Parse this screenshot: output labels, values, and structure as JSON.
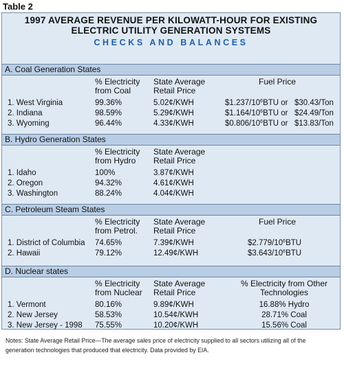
{
  "table_label": "Table 2",
  "title_line1": "1997 AVERAGE REVENUE PER KILOWATT-HOUR FOR EXISTING",
  "title_line2": "ELECTRIC UTILITY GENERATION SYSTEMS",
  "subtitle": "CHECKS AND BALANCES",
  "sections": {
    "coal": {
      "heading": "A. Coal Generation States",
      "col1_l1": "% Electricity",
      "col1_l2": "from Coal",
      "col2_l1": "State Average",
      "col2_l2": "Retail Price",
      "col3_l1": "Fuel Price",
      "rows": [
        {
          "state": "1. West Virginia",
          "pct": "99.36%",
          "price": "5.02¢/KWH",
          "fuel_a": "$1.237/10",
          "fuel_b": "BTU or",
          "fuel_c": "$30.43/Ton"
        },
        {
          "state": "2. Indiana",
          "pct": "98.59%",
          "price": "5.29¢/KWH",
          "fuel_a": "$1.164/10",
          "fuel_b": "BTU or",
          "fuel_c": "$24.49/Ton"
        },
        {
          "state": "3. Wyoming",
          "pct": "96.44%",
          "price": "4.33¢/KWH",
          "fuel_a": "$0.806/10",
          "fuel_b": "BTU or",
          "fuel_c": "$13.83/Ton"
        }
      ]
    },
    "hydro": {
      "heading": "B. Hydro Generation States",
      "col1_l1": "% Electricity",
      "col1_l2": "from Hydro",
      "col2_l1": "State Average",
      "col2_l2": "Retail Price",
      "rows": [
        {
          "state": "1. Idaho",
          "pct": "100%",
          "price": "3.87¢/KWH"
        },
        {
          "state": "2. Oregon",
          "pct": "94.32%",
          "price": "4.61¢/KWH"
        },
        {
          "state": "3. Washington",
          "pct": "88.24%",
          "price": "4.04¢/KWH"
        }
      ]
    },
    "petroleum": {
      "heading": "C. Petroleum Steam States",
      "col1_l1": "% Electricity",
      "col1_l2": "from Petrol.",
      "col2_l1": "State Average",
      "col2_l2": "Retail Price",
      "col3_l1": "Fuel Price",
      "rows": [
        {
          "state": "1. District of Columbia",
          "pct": "74.65%",
          "price": "7.39¢/KWH",
          "fuel_a": "$2.779/10",
          "fuel_b": "BTU"
        },
        {
          "state": "2. Hawaii",
          "pct": "79.12%",
          "price": "12.49¢/KWH",
          "fuel_a": "$3.643/10",
          "fuel_b": "BTU"
        }
      ]
    },
    "nuclear": {
      "heading": "D. Nuclear states",
      "col1_l1": "% Electricity",
      "col1_l2": "from Nuclear",
      "col2_l1": "State Average",
      "col2_l2": "Retail Price",
      "col3_l1": "% Electricity from Other",
      "col3_l2": "Technologies",
      "rows": [
        {
          "state": "1. Vermont",
          "pct": "80.16%",
          "price": "9.89¢/KWH",
          "other": "16.88% Hydro"
        },
        {
          "state": "2. New Jersey",
          "pct": "58.53%",
          "price": "10.54¢/KWH",
          "other": "28.71% Coal"
        },
        {
          "state": "3. New Jersey - 1998",
          "pct": "75.55%",
          "price": "10.20¢/KWH",
          "other": "15.56% Coal"
        }
      ]
    }
  },
  "exponent": "6",
  "notes_line1": "Notes: State Average Retail Price—The average sales price of electricity supplied to all sectors utilizing all of the",
  "notes_line2": "generation technologies that produced that electricity. Data provided by EIA."
}
